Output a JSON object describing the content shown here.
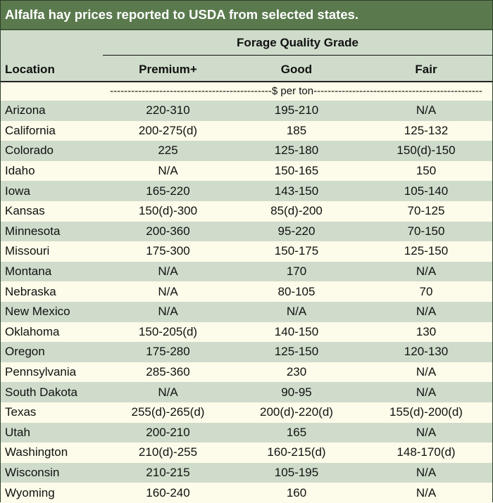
{
  "title": "Alfalfa hay prices reported to USDA from selected states.",
  "header": {
    "group_label": "Forage Quality Grade",
    "location_label": "Location",
    "premium_label": "Premium+",
    "good_label": "Good",
    "fair_label": "Fair"
  },
  "unit_text": "----------------------------------------------$ per ton------------------------------------------------",
  "rows": [
    {
      "location": "Arizona",
      "premium": "220-310",
      "good": "195-210",
      "fair": "N/A"
    },
    {
      "location": "California",
      "premium": "200-275(d)",
      "good": "185",
      "fair": "125-132"
    },
    {
      "location": "Colorado",
      "premium": "225",
      "good": "125-180",
      "fair": "150(d)-150"
    },
    {
      "location": "Idaho",
      "premium": "N/A",
      "good": "150-165",
      "fair": "150"
    },
    {
      "location": "Iowa",
      "premium": "165-220",
      "good": "143-150",
      "fair": "105-140"
    },
    {
      "location": "Kansas",
      "premium": "150(d)-300",
      "good": "85(d)-200",
      "fair": "70-125"
    },
    {
      "location": "Minnesota",
      "premium": "200-360",
      "good": "95-220",
      "fair": "70-150"
    },
    {
      "location": "Missouri",
      "premium": "175-300",
      "good": "150-175",
      "fair": "125-150"
    },
    {
      "location": "Montana",
      "premium": "N/A",
      "good": "170",
      "fair": "N/A"
    },
    {
      "location": "Nebraska",
      "premium": "N/A",
      "good": "80-105",
      "fair": "70"
    },
    {
      "location": "New Mexico",
      "premium": "N/A",
      "good": "N/A",
      "fair": "N/A"
    },
    {
      "location": "Oklahoma",
      "premium": "150-205(d)",
      "good": "140-150",
      "fair": "130"
    },
    {
      "location": "Oregon",
      "premium": "175-280",
      "good": "125-150",
      "fair": "120-130"
    },
    {
      "location": "Pennsylvania",
      "premium": "285-360",
      "good": "230",
      "fair": "N/A"
    },
    {
      "location": "South Dakota",
      "premium": "N/A",
      "good": "90-95",
      "fair": "N/A"
    },
    {
      "location": "Texas",
      "premium": "255(d)-265(d)",
      "good": "200(d)-220(d)",
      "fair": "155(d)-200(d)"
    },
    {
      "location": "Utah",
      "premium": "200-210",
      "good": "165",
      "fair": "N/A"
    },
    {
      "location": "Washington",
      "premium": "210(d)-255",
      "good": "160-215(d)",
      "fair": "148-170(d)"
    },
    {
      "location": "Wisconsin",
      "premium": "210-215",
      "good": "105-195",
      "fair": "N/A"
    },
    {
      "location": "Wyoming",
      "premium": "160-240",
      "good": "160",
      "fair": "N/A"
    }
  ],
  "colors": {
    "title_bg": "#5a7a4e",
    "shaded_row": "#cfdccb",
    "light_row": "#fdfbe9"
  }
}
